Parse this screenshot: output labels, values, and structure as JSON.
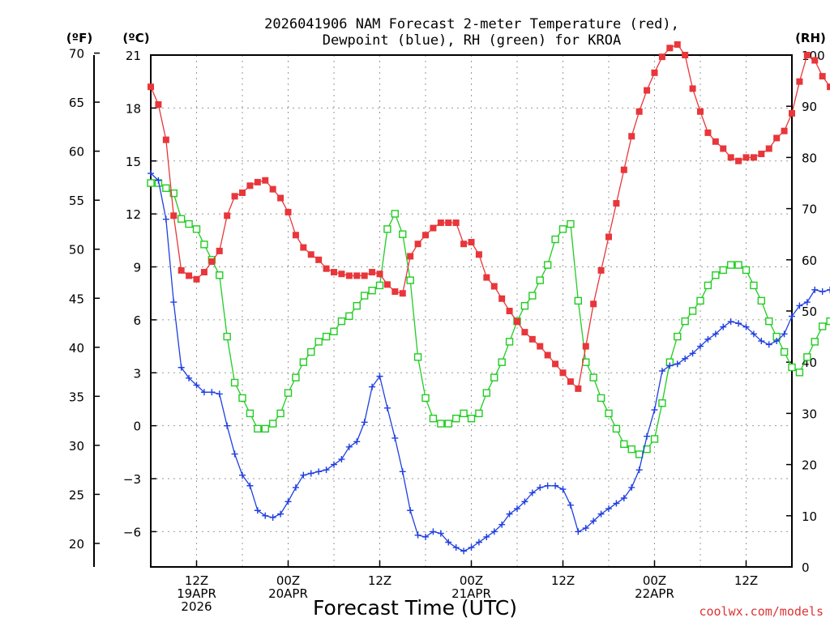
{
  "chart_data": {
    "type": "line",
    "title_line1": "2026041906 NAM Forecast 2-meter Temperature (red),",
    "title_line2": "Dewpoint (blue), RH (green) for KROA",
    "left_unit_f": "(ºF)",
    "left_unit_c": "(ºC)",
    "right_unit": "(RH)",
    "xlabel": "Forecast Time (UTC)",
    "credit": "coolwx.com/models",
    "colors": {
      "temperature": "#e8363a",
      "dewpoint": "#1f3fe0",
      "rh": "#22cc22",
      "grid": "#999999",
      "credit": "#dd3333"
    },
    "x_range_hours": [
      0,
      84
    ],
    "celsius_range": [
      -8.0,
      21.0
    ],
    "rh_range": [
      0,
      100
    ],
    "f_ticks": [
      "70",
      "65",
      "60",
      "55",
      "50",
      "45",
      "40",
      "35",
      "30",
      "25",
      "20"
    ],
    "c_ticks": [
      "21",
      "18",
      "15",
      "12",
      "9",
      "6",
      "3",
      "0",
      "−3",
      "−6"
    ],
    "rh_ticks": [
      "100",
      "90",
      "80",
      "70",
      "60",
      "50",
      "40",
      "30",
      "20",
      "10",
      "0"
    ],
    "x_ticks": [
      {
        "hour": 6,
        "line1": "12Z",
        "line2": "19APR",
        "line3": "2026"
      },
      {
        "hour": 18,
        "line1": "00Z",
        "line2": "20APR",
        "line3": ""
      },
      {
        "hour": 30,
        "line1": "12Z",
        "line2": "",
        "line3": ""
      },
      {
        "hour": 42,
        "line1": "00Z",
        "line2": "21APR",
        "line3": ""
      },
      {
        "hour": 54,
        "line1": "12Z",
        "line2": "",
        "line3": ""
      },
      {
        "hour": 66,
        "line1": "00Z",
        "line2": "22APR",
        "line3": ""
      },
      {
        "hour": 78,
        "line1": "12Z",
        "line2": "",
        "line3": ""
      }
    ],
    "series": [
      {
        "name": "Temperature",
        "unit": "C",
        "values": [
          19.2,
          18.2,
          16.2,
          11.9,
          8.8,
          8.5,
          8.3,
          8.7,
          9.3,
          9.9,
          11.9,
          13.0,
          13.2,
          13.6,
          13.8,
          13.9,
          13.4,
          12.9,
          12.1,
          10.8,
          10.1,
          9.7,
          9.4,
          8.9,
          8.7,
          8.6,
          8.5,
          8.5,
          8.5,
          8.7,
          8.6,
          8.0,
          7.6,
          7.5,
          9.6,
          10.3,
          10.8,
          11.2,
          11.5,
          11.5,
          11.5,
          10.3,
          10.4,
          9.7,
          8.4,
          7.9,
          7.2,
          6.5,
          5.9,
          5.3,
          4.9,
          4.5,
          4.0,
          3.5,
          3.0,
          2.5,
          2.1,
          4.5,
          6.9,
          8.8,
          10.7,
          12.6,
          14.5,
          16.4,
          17.8,
          19.0,
          20.0,
          20.9,
          21.4,
          21.6,
          21.0,
          19.1,
          17.8,
          16.6,
          16.1,
          15.7,
          15.2,
          15.0,
          15.2,
          15.2,
          15.4,
          15.7,
          16.3,
          16.7,
          17.7,
          19.5,
          21.0,
          20.7,
          19.8,
          19.2
        ]
      },
      {
        "name": "Dewpoint",
        "unit": "C",
        "values": [
          14.3,
          13.9,
          11.7,
          7.0,
          3.3,
          2.7,
          2.3,
          1.9,
          1.9,
          1.8,
          0.0,
          -1.6,
          -2.8,
          -3.4,
          -4.8,
          -5.1,
          -5.2,
          -5.0,
          -4.3,
          -3.5,
          -2.8,
          -2.7,
          -2.6,
          -2.5,
          -2.2,
          -1.9,
          -1.2,
          -0.9,
          0.2,
          2.2,
          2.8,
          1.0,
          -0.7,
          -2.6,
          -4.8,
          -6.2,
          -6.3,
          -6.0,
          -6.1,
          -6.6,
          -6.9,
          -7.1,
          -6.9,
          -6.6,
          -6.3,
          -6.0,
          -5.6,
          -5.0,
          -4.7,
          -4.3,
          -3.8,
          -3.5,
          -3.4,
          -3.4,
          -3.6,
          -4.5,
          -6.0,
          -5.8,
          -5.4,
          -5.0,
          -4.7,
          -4.4,
          -4.1,
          -3.5,
          -2.5,
          -0.6,
          0.9,
          3.1,
          3.4,
          3.5,
          3.8,
          4.1,
          4.5,
          4.9,
          5.2,
          5.6,
          5.9,
          5.8,
          5.6,
          5.2,
          4.8,
          4.6,
          4.8,
          5.2,
          6.2,
          6.8,
          7.0,
          7.7,
          7.6,
          7.7
        ]
      },
      {
        "name": "RH",
        "unit": "%",
        "values": [
          75,
          75,
          74,
          73,
          68,
          67,
          66,
          63,
          60,
          57,
          45,
          36,
          33,
          30,
          27,
          27,
          28,
          30,
          34,
          37,
          40,
          42,
          44,
          45,
          46,
          48,
          49,
          51,
          53,
          54,
          55,
          66,
          69,
          65,
          56,
          41,
          33,
          29,
          28,
          28,
          29,
          30,
          29,
          30,
          34,
          37,
          40,
          44,
          48,
          51,
          53,
          56,
          59,
          64,
          66,
          67,
          52,
          40,
          37,
          33,
          30,
          27,
          24,
          23,
          22,
          23,
          25,
          32,
          40,
          45,
          48,
          50,
          52,
          55,
          57,
          58,
          59,
          59,
          58,
          55,
          52,
          48,
          45,
          42,
          39,
          38,
          41,
          44,
          47,
          48
        ]
      }
    ]
  }
}
